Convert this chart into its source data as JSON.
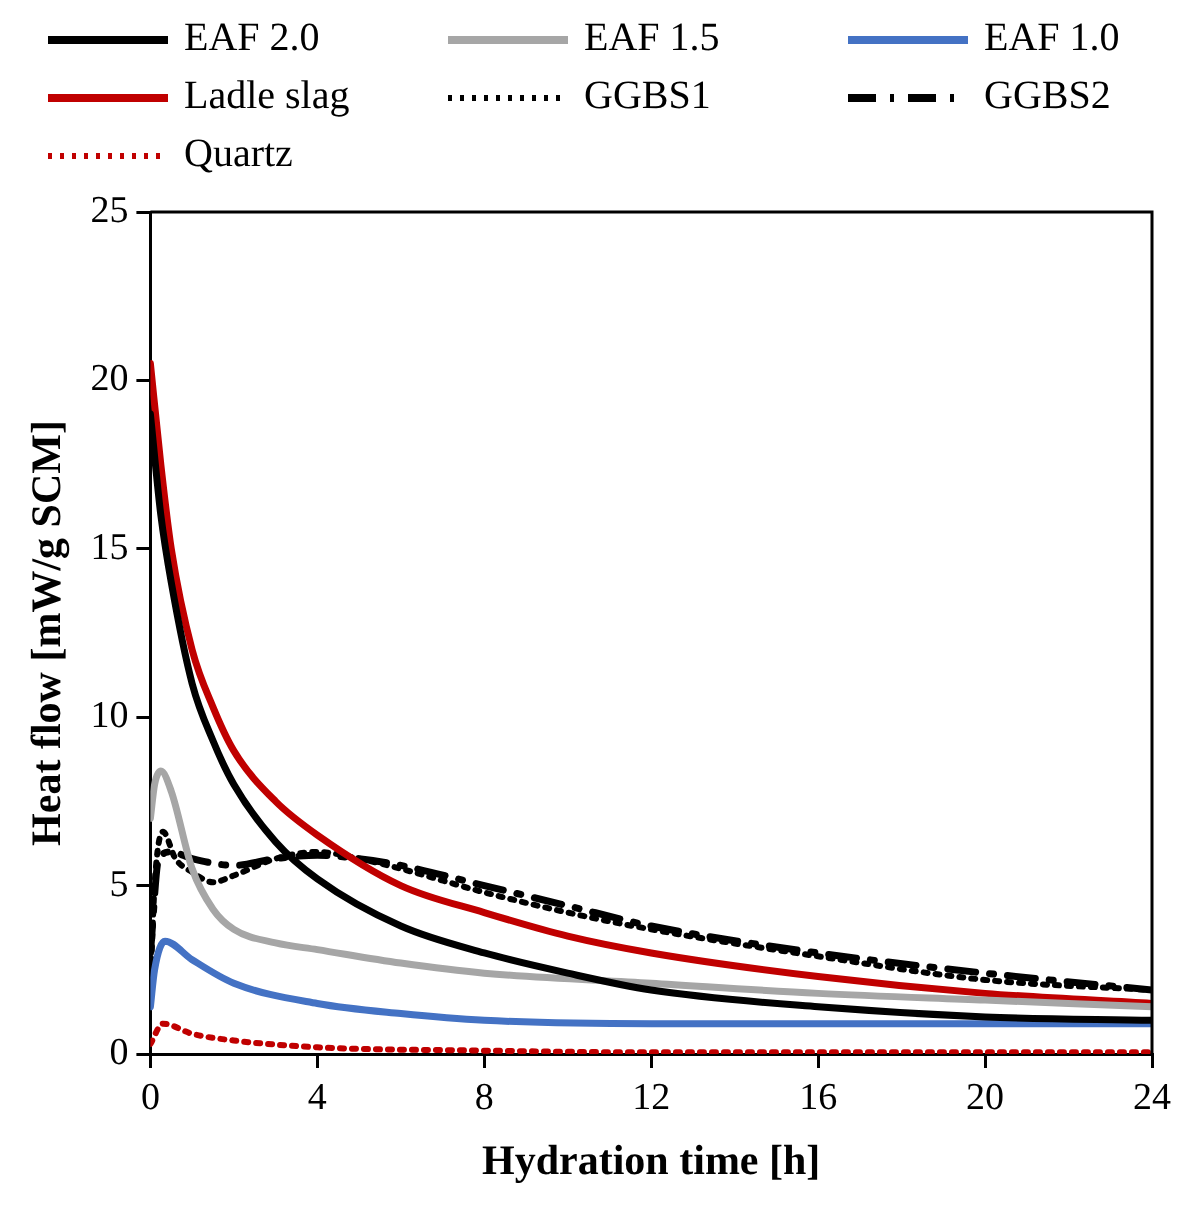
{
  "chart_data": {
    "type": "line",
    "xlabel": "Hydration time [h]",
    "ylabel": "Heat flow [mW/g SCM]",
    "xlim": [
      0,
      24
    ],
    "xticks": [
      0,
      4,
      8,
      12,
      16,
      20,
      24
    ],
    "ylim": [
      0,
      25
    ],
    "yticks": [
      0,
      5,
      10,
      15,
      20,
      25
    ],
    "grid": false,
    "legend": "top",
    "marker": "none",
    "series": [
      {
        "name": "EAF 2.0",
        "color": "#000000",
        "line_style": "solid",
        "x": [
          0,
          0.25,
          0.5,
          1,
          1.5,
          2,
          3,
          4,
          6,
          8,
          10,
          12,
          16,
          20,
          24
        ],
        "values": [
          19,
          16,
          14,
          11,
          9.3,
          8,
          6.3,
          5.2,
          3.8,
          3,
          2.4,
          1.9,
          1.4,
          1.1,
          1
        ]
      },
      {
        "name": "EAF 1.5",
        "color": "#a6a6a6",
        "line_style": "solid",
        "x": [
          0,
          0.1,
          0.25,
          0.5,
          1,
          1.5,
          2,
          3,
          4,
          6,
          8,
          12,
          16,
          20,
          24
        ],
        "values": [
          7,
          8,
          8.4,
          7.8,
          5.5,
          4.3,
          3.7,
          3.3,
          3.1,
          2.7,
          2.4,
          2.1,
          1.8,
          1.6,
          1.4
        ]
      },
      {
        "name": "EAF 1.0",
        "color": "#4472c4",
        "line_style": "solid",
        "x": [
          0,
          0.1,
          0.35,
          1,
          2,
          4,
          6,
          8,
          12,
          16,
          20,
          24
        ],
        "values": [
          1.4,
          2.5,
          3.35,
          2.8,
          2.1,
          1.5,
          1.2,
          1,
          0.9,
          0.9,
          0.9,
          0.9
        ]
      },
      {
        "name": "Ladle slag",
        "color": "#c00000",
        "line_style": "solid",
        "x": [
          0,
          0.25,
          0.5,
          1,
          1.5,
          2,
          3,
          4,
          6,
          8,
          10,
          12,
          16,
          20,
          24
        ],
        "values": [
          20.5,
          17.5,
          15,
          12,
          10.3,
          9,
          7.5,
          6.5,
          5,
          4.2,
          3.5,
          3,
          2.3,
          1.8,
          1.5
        ]
      },
      {
        "name": "GGBS1",
        "color": "#000000",
        "line_style": "dotted",
        "x": [
          0,
          0.1,
          0.3,
          0.6,
          1,
          1.5,
          2,
          3,
          4,
          5,
          6,
          8,
          10,
          12,
          16,
          20,
          24
        ],
        "values": [
          2,
          5,
          6.6,
          5.8,
          5.4,
          5.1,
          5.3,
          5.8,
          6,
          5.8,
          5.5,
          4.8,
          4.2,
          3.7,
          2.9,
          2.2,
          1.9
        ]
      },
      {
        "name": "GGBS2",
        "color": "#000000",
        "line_style": "dashed",
        "x": [
          0,
          0.2,
          0.5,
          1,
          2,
          3,
          4,
          5,
          6,
          8,
          10,
          12,
          16,
          20,
          24
        ],
        "values": [
          3,
          5.8,
          6,
          5.8,
          5.6,
          5.8,
          5.9,
          5.8,
          5.6,
          5,
          4.4,
          3.8,
          3,
          2.4,
          1.9
        ]
      },
      {
        "name": "Quartz",
        "color": "#c00000",
        "line_style": "dotted",
        "x": [
          0,
          0.3,
          1,
          2,
          4,
          8,
          12,
          24
        ],
        "values": [
          0.3,
          0.9,
          0.6,
          0.4,
          0.2,
          0.1,
          0.05,
          0.05
        ]
      }
    ]
  }
}
